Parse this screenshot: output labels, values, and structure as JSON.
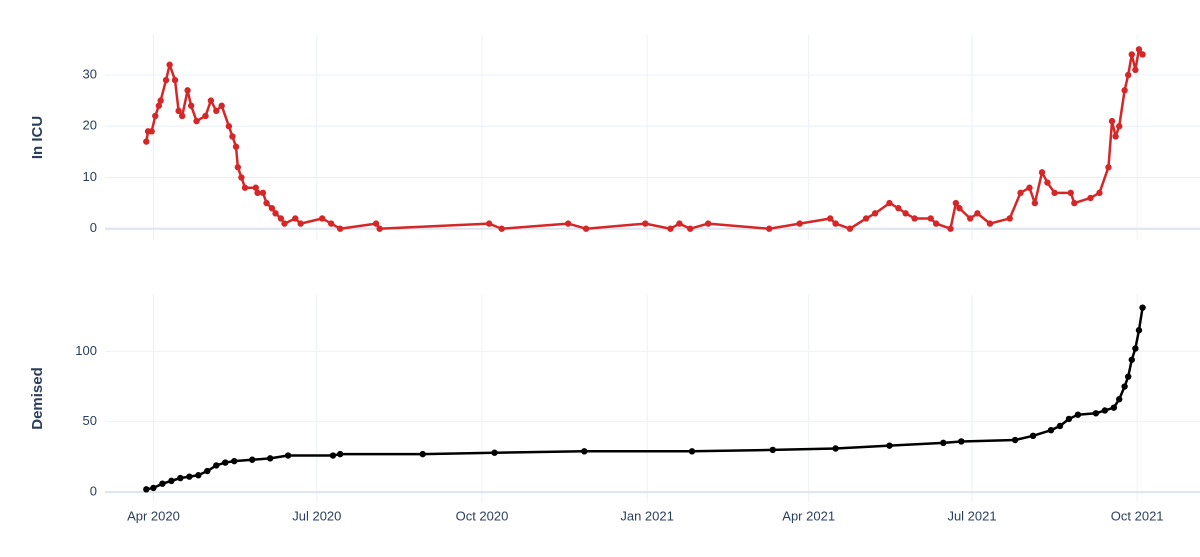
{
  "chart_data": [
    {
      "type": "line",
      "y_label": "In ICU",
      "x": [
        -4,
        -3,
        -1,
        1,
        3,
        4,
        7,
        9,
        12,
        14,
        16,
        19,
        21,
        24,
        29,
        32,
        35,
        38,
        42,
        44,
        46,
        47,
        49,
        51,
        57,
        58,
        61,
        63,
        66,
        68,
        71,
        73,
        79,
        82,
        94,
        99,
        104,
        124,
        126,
        187,
        194,
        231,
        241,
        274,
        288,
        293,
        299,
        309,
        343,
        360,
        377,
        380,
        388,
        397,
        402,
        410,
        415,
        419,
        424,
        433,
        436,
        444,
        447,
        449,
        455,
        459,
        466,
        477,
        483,
        488,
        491,
        495,
        498,
        502,
        511,
        513,
        522,
        527,
        532,
        534,
        536,
        538,
        541,
        543,
        545,
        547,
        549,
        551
      ],
      "series": [
        {
          "name": "In ICU",
          "color": "#d62728",
          "values": [
            17,
            19,
            19,
            22,
            24,
            25,
            29,
            32,
            29,
            23,
            22,
            27,
            24,
            21,
            22,
            25,
            23,
            24,
            20,
            18,
            16,
            12,
            10,
            8,
            8,
            7,
            7,
            5,
            4,
            3,
            2,
            1,
            2,
            1,
            2,
            1,
            0,
            1,
            0,
            1,
            0,
            1,
            0,
            1,
            0,
            1,
            0,
            1,
            0,
            1,
            2,
            1,
            0,
            2,
            3,
            5,
            4,
            3,
            2,
            2,
            1,
            0,
            5,
            4,
            2,
            3,
            1,
            2,
            7,
            8,
            5,
            11,
            9,
            7,
            7,
            5,
            6,
            7,
            12,
            21,
            18,
            20,
            27,
            30,
            34,
            31,
            35,
            34
          ]
        }
      ],
      "xlim": [
        -27,
        583
      ],
      "xticks": [
        0,
        91,
        183,
        275,
        365,
        456,
        548
      ],
      "ylim": [
        -2.2,
        37.8
      ],
      "yticks": [
        0,
        10,
        20,
        30
      ],
      "grid": true
    },
    {
      "type": "line",
      "y_label": "Demised",
      "x": [
        -4,
        0,
        5,
        10,
        15,
        20,
        25,
        30,
        35,
        40,
        45,
        55,
        65,
        75,
        100,
        104,
        150,
        190,
        240,
        300,
        345,
        380,
        410,
        440,
        450,
        480,
        490,
        500,
        505,
        510,
        515,
        525,
        530,
        535,
        538,
        541,
        543,
        545,
        547,
        549,
        551
      ],
      "series": [
        {
          "name": "Demised",
          "color": "#000000",
          "values": [
            2,
            3,
            6,
            8,
            10,
            11,
            12,
            15,
            19,
            21,
            22,
            23,
            24,
            26,
            26,
            27,
            27,
            28,
            29,
            29,
            30,
            31,
            33,
            35,
            36,
            37,
            40,
            44,
            47,
            52,
            55,
            56,
            58,
            60,
            66,
            75,
            82,
            94,
            102,
            115,
            131
          ]
        }
      ],
      "xlim": [
        -27,
        583
      ],
      "xticks": [
        {
          "value": 0,
          "label": "Apr 2020"
        },
        {
          "value": 91,
          "label": "Jul 2020"
        },
        {
          "value": 183,
          "label": "Oct 2020"
        },
        {
          "value": 275,
          "label": "Jan 2021"
        },
        {
          "value": 365,
          "label": "Apr 2021"
        },
        {
          "value": 456,
          "label": "Jul 2021"
        },
        {
          "value": 548,
          "label": "Oct 2021"
        }
      ],
      "ylim": [
        -7,
        140
      ],
      "yticks": [
        0,
        50,
        100
      ],
      "grid": true
    }
  ]
}
